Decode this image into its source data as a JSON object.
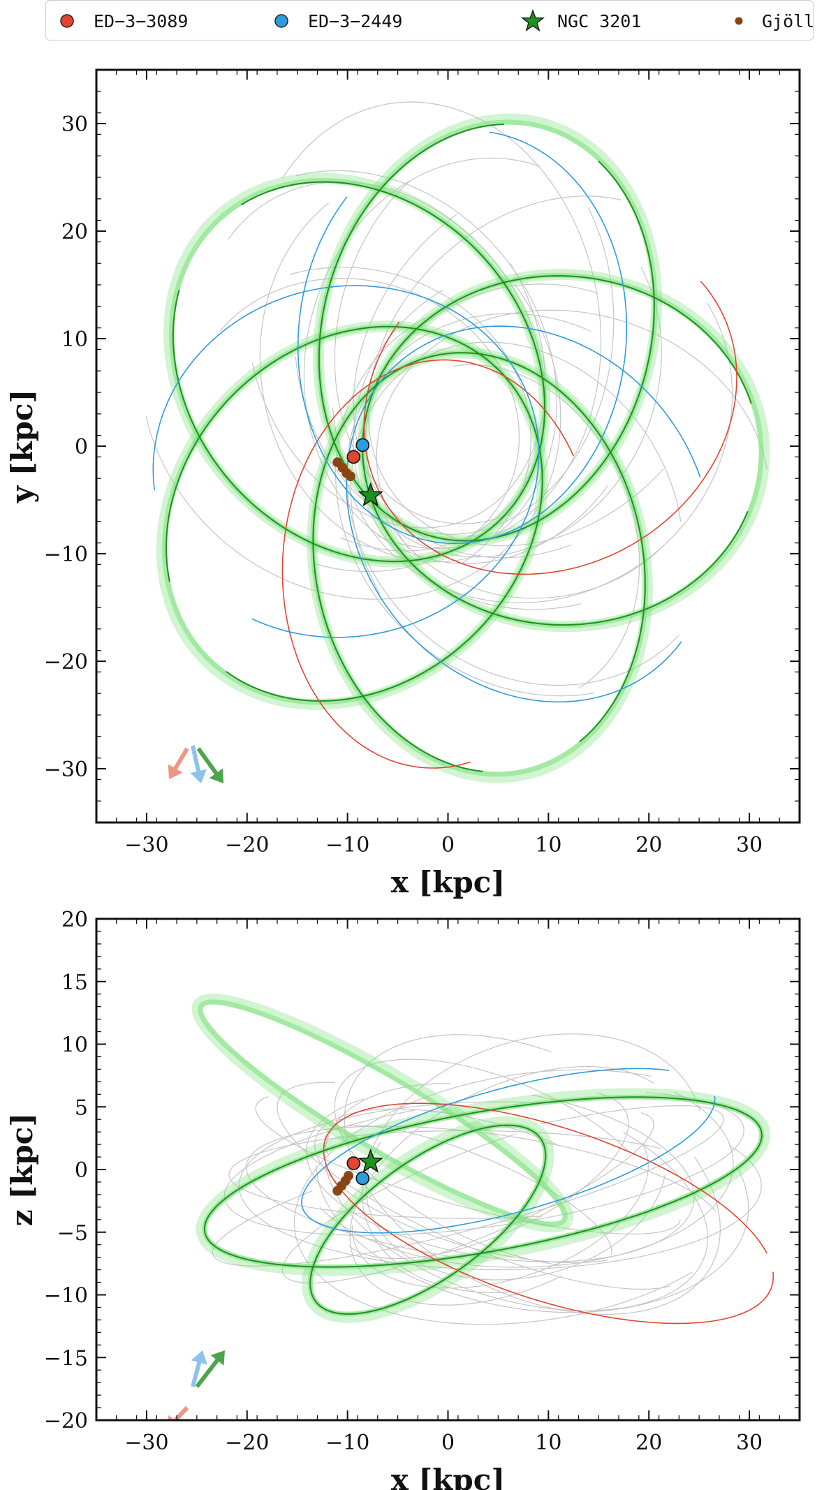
{
  "legend": {
    "items": [
      {
        "label": "ED−3−3089",
        "color": "#e2452f",
        "marker": "circle"
      },
      {
        "label": "ED−3−2449",
        "color": "#2d9cdb",
        "marker": "circle"
      },
      {
        "label": "NGC 3201",
        "color": "#1f8f1f",
        "marker": "star"
      },
      {
        "label": "Gjöll",
        "color": "#8b4513",
        "marker": "small-circle"
      }
    ]
  },
  "colors": {
    "ed3089": "#e2452f",
    "ed2449": "#2d9cdb",
    "ngc": "#1f8f1f",
    "stream": "#7be07b",
    "gjoll": "#8b4513",
    "sample": "#9e9e9e"
  },
  "chart_data": [
    {
      "type": "line",
      "panel": "top",
      "xlabel": "x [kpc]",
      "ylabel": "y [kpc]",
      "xlim": [
        -35,
        35
      ],
      "ylim": [
        -35,
        35
      ],
      "xticks": [
        -30,
        -20,
        -10,
        0,
        10,
        20,
        30
      ],
      "yticks": [
        -30,
        -20,
        -10,
        0,
        10,
        20,
        30
      ],
      "xtick_labels": [
        "−30",
        "−20",
        "−10",
        "0",
        "10",
        "20",
        "30"
      ],
      "ytick_labels": [
        "−30",
        "−20",
        "−10",
        "0",
        "10",
        "20",
        "30"
      ],
      "series": [
        {
          "name": "ED−3−3089",
          "position": [
            -9.4,
            -1.0
          ]
        },
        {
          "name": "ED−3−2449",
          "position": [
            -8.5,
            0.1
          ]
        },
        {
          "name": "NGC 3201",
          "position": [
            -7.7,
            -4.6
          ]
        },
        {
          "name": "Gjöll",
          "points": [
            [
              -11.0,
              -1.5
            ],
            [
              -10.5,
              -2.0
            ],
            [
              -10.1,
              -2.5
            ],
            [
              -9.7,
              -2.8
            ]
          ]
        }
      ],
      "orbits": {
        "ngc_petals": {
          "rmin": 8.5,
          "rmax": 31.0,
          "angles": [
            -2,
            70,
            142,
            214,
            286
          ],
          "width": 9.5
        },
        "ed3089_petals": {
          "rmin": 8.0,
          "rmax": 30.0,
          "angles": [
            22,
            -95
          ],
          "width": 8.0,
          "arc": [
            0.35,
            1.05
          ]
        },
        "ed2449_petals": {
          "rmin": 9.0,
          "rmax": 29.5,
          "angles": [
            -38,
            82,
            188
          ],
          "width": 9.0,
          "arc": [
            0.15,
            1.0
          ]
        }
      }
    },
    {
      "type": "line",
      "panel": "bottom",
      "xlabel": "x [kpc]",
      "ylabel": "z [kpc]",
      "xlim": [
        -35,
        35
      ],
      "ylim": [
        -20,
        20
      ],
      "xticks": [
        -30,
        -20,
        -10,
        0,
        10,
        20,
        30
      ],
      "yticks": [
        -20,
        -15,
        -10,
        -5,
        0,
        5,
        10,
        15,
        20
      ],
      "xtick_labels": [
        "−30",
        "−20",
        "−10",
        "0",
        "10",
        "20",
        "30"
      ],
      "ytick_labels": [
        "−20",
        "−15",
        "−10",
        "−5",
        "0",
        "5",
        "10",
        "15",
        "20"
      ],
      "series": [
        {
          "name": "ED−3−3089",
          "position": [
            -9.4,
            0.5
          ]
        },
        {
          "name": "ED−3−2449",
          "position": [
            -8.5,
            -0.7
          ]
        },
        {
          "name": "NGC 3201",
          "position": [
            -7.7,
            0.6
          ]
        },
        {
          "name": "Gjöll",
          "points": [
            [
              -11.0,
              -1.7
            ],
            [
              -10.6,
              -1.3
            ],
            [
              -10.2,
              -0.9
            ],
            [
              -9.9,
              -0.5
            ]
          ]
        }
      ],
      "orbits": {
        "ngc_ellipse": {
          "cx": 3.5,
          "cy": -1.0,
          "rx": 28.0,
          "ry": 5.6,
          "angle": 8
        },
        "ngc_loop": {
          "cx": -2.0,
          "cy": -4.0,
          "rx": 13.0,
          "ry": 5.0,
          "angle": 28
        },
        "ngc_stream_upper": {
          "cx": -6.5,
          "cy": 4.5,
          "rx": 20.0,
          "ry": 3.0,
          "angle": -25
        },
        "ed3089": {
          "cx": 10.0,
          "cy": -3.5,
          "rx": 23.0,
          "ry": 7.0,
          "angle": -14
        },
        "ed2449": {
          "cx": 6.0,
          "cy": 1.5,
          "rx": 21.0,
          "ry": 5.0,
          "angle": 12
        }
      }
    }
  ]
}
